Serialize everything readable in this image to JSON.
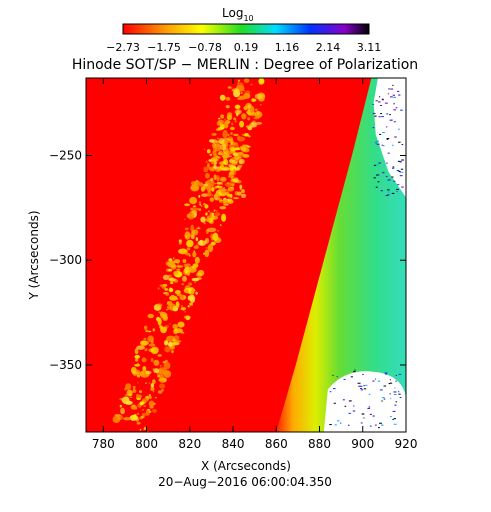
{
  "chart_data": {
    "type": "heatmap",
    "title": "Hinode SOT/SP − MERLIN : Degree of Polarization",
    "xlabel": "X (Arcseconds)",
    "ylabel": "Y (Arcseconds)",
    "timestamp": "20−Aug−2016 06:00:04.350",
    "colorbar": {
      "label": "Log",
      "label_sub": "10",
      "ticks": [
        "−2.73",
        "−1.75",
        "−0.78",
        "0.19",
        "1.16",
        "2.14",
        "3.11"
      ],
      "range": [
        -2.73,
        3.11
      ],
      "colormap": "rainbow (red → yellow → green → cyan → blue → violet → black)"
    },
    "x_axis": {
      "range": [
        772,
        920
      ],
      "ticks": [
        780,
        800,
        820,
        840,
        860,
        880,
        900,
        920
      ],
      "tick_labels": [
        "780",
        "800",
        "820",
        "840",
        "860",
        "880",
        "900",
        "920"
      ]
    },
    "y_axis": {
      "range": [
        -382,
        -213
      ],
      "ticks": [
        -250,
        -300,
        -350
      ],
      "tick_labels": [
        "−250",
        "−300",
        "−350"
      ]
    },
    "limb_x": [
      [
        -213,
        904
      ],
      [
        -250,
        895
      ],
      [
        -300,
        882
      ],
      [
        -350,
        869
      ],
      [
        -382,
        860
      ]
    ],
    "regions": [
      {
        "label": "disk",
        "value": -2.73,
        "color": "#ff0000"
      },
      {
        "label": "limb gradient",
        "value": 0.19,
        "color": "#33dd66"
      },
      {
        "label": "off-limb no data",
        "value": null,
        "color": "#ffffff"
      }
    ]
  }
}
